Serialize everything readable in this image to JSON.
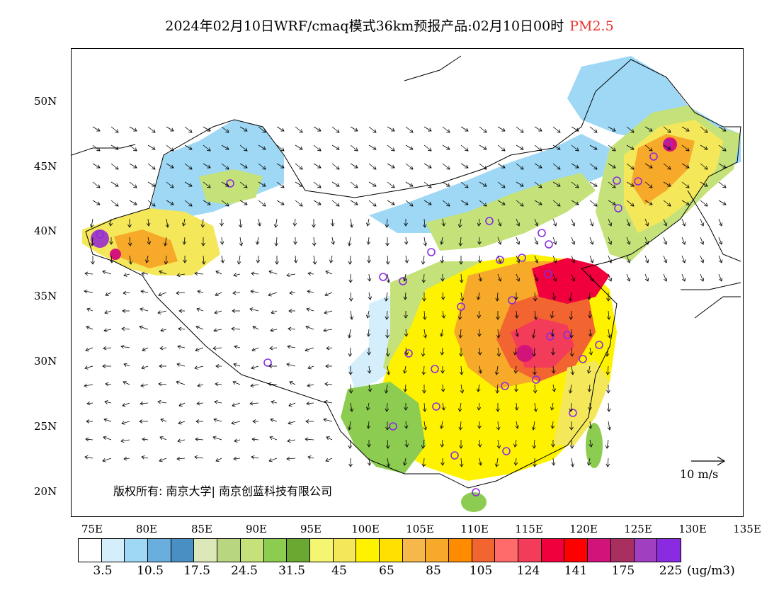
{
  "title": {
    "main": "2024年02月10日WRF/cmaq模式36km预报产品:02月10日00时",
    "pollutant": "PM2.5",
    "pollutant_color": "#e8322d"
  },
  "axes": {
    "lat_labels": [
      "50N",
      "45N",
      "40N",
      "35N",
      "30N",
      "25N",
      "20N"
    ],
    "lon_labels": [
      "75E",
      "80E",
      "85E",
      "90E",
      "95E",
      "100E",
      "105E",
      "110E",
      "115E",
      "120E",
      "125E",
      "130E",
      "135E"
    ]
  },
  "copyright": "版权所有: 南京大学| 南京创蓝科技有限公司",
  "wind_reference": "10 m/s",
  "legend": {
    "unit": "(ug/m3)",
    "labels": [
      "3.5",
      "10.5",
      "17.5",
      "24.5",
      "31.5",
      "45",
      "65",
      "85",
      "105",
      "124",
      "141",
      "175",
      "225"
    ],
    "colors": [
      "#ffffff",
      "#d4eefb",
      "#9ed8f5",
      "#6aaedd",
      "#4a8fc4",
      "#dde8b8",
      "#b8d680",
      "#c4e17a",
      "#8ccc50",
      "#6aa832",
      "#f4f672",
      "#f4e85a",
      "#fff200",
      "#ffe000",
      "#f6b84a",
      "#f7a92a",
      "#ff8c00",
      "#f26430",
      "#ff6a6a",
      "#f23c5a",
      "#f0003c",
      "#ff0000",
      "#d2147a",
      "#a83060",
      "#a040c0",
      "#8a2be2"
    ]
  },
  "site_markers_color": "#8a2be2"
}
